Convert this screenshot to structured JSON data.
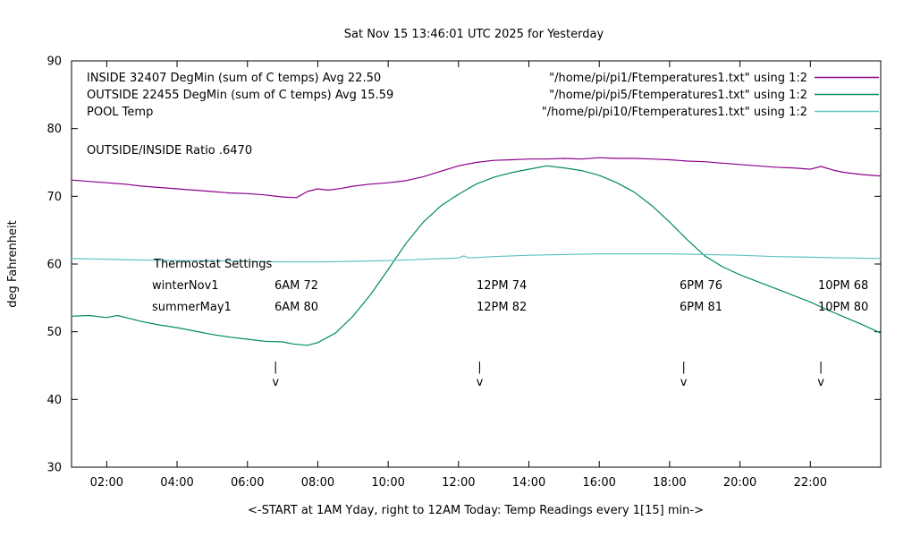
{
  "title": "Sat Nov 15 13:46:01 UTC 2025 for Yesterday",
  "annotations": {
    "ratio": "OUTSIDE/INSIDE Ratio .6470",
    "thermostat_title": "Thermostat Settings",
    "thermostat_rows": [
      {
        "name": "winterNov1",
        "c1": "6AM 72",
        "c2": "12PM 74",
        "c3": "6PM 76",
        "c4": "10PM 68"
      },
      {
        "name": "summerMay1",
        "c1": "6AM 80",
        "c2": "12PM 82",
        "c3": "6PM 81",
        "c4": "10PM 80"
      }
    ],
    "marker_top": "|",
    "marker_bottom": "v"
  },
  "chart_data": {
    "type": "line",
    "title": "Sat Nov 15 13:46:01 UTC 2025 for Yesterday",
    "xlabel": "<-START at 1AM Yday, right to 12AM Today:  Temp Readings every 1[15] min->",
    "ylabel": "deg Fahrenheit",
    "xlim": [
      1,
      24
    ],
    "ylim": [
      30,
      90
    ],
    "grid": false,
    "legend_position": "top-right-inside",
    "x_ticks": [
      {
        "value": 2,
        "label": "02:00"
      },
      {
        "value": 4,
        "label": "04:00"
      },
      {
        "value": 6,
        "label": "06:00"
      },
      {
        "value": 8,
        "label": "08:00"
      },
      {
        "value": 10,
        "label": "10:00"
      },
      {
        "value": 12,
        "label": "12:00"
      },
      {
        "value": 14,
        "label": "14:00"
      },
      {
        "value": 16,
        "label": "16:00"
      },
      {
        "value": 18,
        "label": "18:00"
      },
      {
        "value": 20,
        "label": "20:00"
      },
      {
        "value": 22,
        "label": "22:00"
      }
    ],
    "y_ticks": [
      {
        "value": 30,
        "label": "30"
      },
      {
        "value": 40,
        "label": "40"
      },
      {
        "value": 50,
        "label": "50"
      },
      {
        "value": 60,
        "label": "60"
      },
      {
        "value": 70,
        "label": "70"
      },
      {
        "value": 80,
        "label": "80"
      },
      {
        "value": 90,
        "label": "90"
      }
    ],
    "event_marker_hours": [
      6.8,
      12.6,
      18.4,
      22.3
    ],
    "series": [
      {
        "name": "INSIDE",
        "label": "INSIDE 32407 DegMin (sum of C temps) Avg 22.50",
        "file": "\"/home/pi/pi1/Ftemperatures1.txt\" using 1:2",
        "color": "#8b008b",
        "points": [
          [
            1,
            72.4
          ],
          [
            1.5,
            72.2
          ],
          [
            2,
            72.0
          ],
          [
            2.5,
            71.8
          ],
          [
            3,
            71.5
          ],
          [
            3.5,
            71.3
          ],
          [
            4,
            71.1
          ],
          [
            4.5,
            70.9
          ],
          [
            5,
            70.7
          ],
          [
            5.5,
            70.5
          ],
          [
            6,
            70.4
          ],
          [
            6.5,
            70.2
          ],
          [
            7,
            69.9
          ],
          [
            7.4,
            69.8
          ],
          [
            7.7,
            70.7
          ],
          [
            8,
            71.1
          ],
          [
            8.3,
            70.9
          ],
          [
            8.7,
            71.2
          ],
          [
            9,
            71.5
          ],
          [
            9.5,
            71.8
          ],
          [
            10,
            72.0
          ],
          [
            10.5,
            72.3
          ],
          [
            11,
            72.9
          ],
          [
            11.5,
            73.7
          ],
          [
            12,
            74.5
          ],
          [
            12.5,
            75.0
          ],
          [
            13,
            75.3
          ],
          [
            13.5,
            75.4
          ],
          [
            14,
            75.5
          ],
          [
            14.5,
            75.5
          ],
          [
            15,
            75.6
          ],
          [
            15.5,
            75.5
          ],
          [
            16,
            75.7
          ],
          [
            16.5,
            75.6
          ],
          [
            17,
            75.6
          ],
          [
            17.5,
            75.5
          ],
          [
            18,
            75.4
          ],
          [
            18.5,
            75.2
          ],
          [
            19,
            75.1
          ],
          [
            19.5,
            74.9
          ],
          [
            20,
            74.7
          ],
          [
            20.5,
            74.5
          ],
          [
            21,
            74.3
          ],
          [
            21.5,
            74.2
          ],
          [
            22,
            74.0
          ],
          [
            22.3,
            74.4
          ],
          [
            22.7,
            73.8
          ],
          [
            23,
            73.5
          ],
          [
            23.5,
            73.2
          ],
          [
            24,
            73.0
          ]
        ]
      },
      {
        "name": "OUTSIDE",
        "label": "OUTSIDE 22455 DegMin (sum of C temps) Avg 15.59",
        "file": "\"/home/pi/pi5/Ftemperatures1.txt\" using 1:2",
        "color": "#008b5a",
        "points": [
          [
            1,
            52.3
          ],
          [
            1.5,
            52.4
          ],
          [
            2,
            52.1
          ],
          [
            2.3,
            52.4
          ],
          [
            2.7,
            51.9
          ],
          [
            3,
            51.5
          ],
          [
            3.5,
            51.0
          ],
          [
            4,
            50.6
          ],
          [
            4.5,
            50.1
          ],
          [
            5,
            49.6
          ],
          [
            5.5,
            49.2
          ],
          [
            6,
            48.9
          ],
          [
            6.5,
            48.6
          ],
          [
            7,
            48.5
          ],
          [
            7.3,
            48.2
          ],
          [
            7.7,
            48.0
          ],
          [
            8,
            48.4
          ],
          [
            8.5,
            49.8
          ],
          [
            9,
            52.3
          ],
          [
            9.5,
            55.5
          ],
          [
            10,
            59.2
          ],
          [
            10.5,
            63.0
          ],
          [
            11,
            66.2
          ],
          [
            11.5,
            68.6
          ],
          [
            12,
            70.3
          ],
          [
            12.5,
            71.8
          ],
          [
            13,
            72.8
          ],
          [
            13.5,
            73.5
          ],
          [
            14,
            74.0
          ],
          [
            14.5,
            74.5
          ],
          [
            15,
            74.2
          ],
          [
            15.5,
            73.8
          ],
          [
            16,
            73.1
          ],
          [
            16.5,
            72.0
          ],
          [
            17,
            70.6
          ],
          [
            17.5,
            68.6
          ],
          [
            18,
            66.2
          ],
          [
            18.5,
            63.6
          ],
          [
            19,
            61.2
          ],
          [
            19.5,
            59.6
          ],
          [
            20,
            58.4
          ],
          [
            20.5,
            57.4
          ],
          [
            21,
            56.4
          ],
          [
            21.5,
            55.4
          ],
          [
            22,
            54.4
          ],
          [
            22.5,
            53.2
          ],
          [
            23,
            52.1
          ],
          [
            23.5,
            51.0
          ],
          [
            24,
            49.8
          ]
        ]
      },
      {
        "name": "POOL",
        "label": "POOL Temp",
        "file": "\"/home/pi/pi10/Ftemperatures1.txt\" using 1:2",
        "color": "#5fc3c3",
        "points": [
          [
            1,
            60.8
          ],
          [
            2,
            60.7
          ],
          [
            3,
            60.6
          ],
          [
            4,
            60.5
          ],
          [
            5,
            60.5
          ],
          [
            6,
            60.4
          ],
          [
            7,
            60.3
          ],
          [
            8,
            60.3
          ],
          [
            9,
            60.4
          ],
          [
            10,
            60.5
          ],
          [
            11,
            60.7
          ],
          [
            12,
            60.9
          ],
          [
            12.15,
            61.2
          ],
          [
            12.3,
            60.9
          ],
          [
            13,
            61.1
          ],
          [
            14,
            61.3
          ],
          [
            15,
            61.4
          ],
          [
            16,
            61.5
          ],
          [
            17,
            61.5
          ],
          [
            18,
            61.5
          ],
          [
            19,
            61.4
          ],
          [
            20,
            61.3
          ],
          [
            21,
            61.1
          ],
          [
            22,
            61.0
          ],
          [
            23,
            60.9
          ],
          [
            24,
            60.8
          ]
        ]
      }
    ]
  }
}
